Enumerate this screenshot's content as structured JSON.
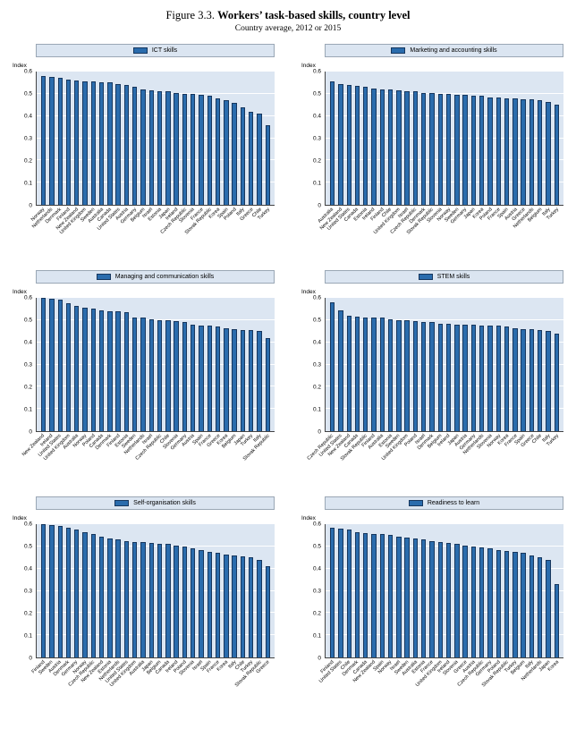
{
  "figure": {
    "label": "Figure 3.3.",
    "title": "Workers’ task-based skills, country level",
    "subtitle": "Country average, 2012 or 2015"
  },
  "labels": {
    "index": "Index"
  },
  "colors": {
    "bar_fill": "#2a6cad",
    "bar_border": "#17375e",
    "plot_background": "#dce6f2",
    "gridline": "#ffffff"
  },
  "chart_data": [
    {
      "type": "bar",
      "title": "ICT skills",
      "ylabel": "Index",
      "xlabel": "",
      "ylim": [
        0,
        0.6
      ],
      "ytick_step": 0.1,
      "grid": true,
      "legend_position": "top",
      "categories": [
        "Norway",
        "Netherlands",
        "Denmark",
        "Finland",
        "New Zealand",
        "United Kingdom",
        "Sweden",
        "Australia",
        "Canada",
        "United States",
        "Austria",
        "Germany",
        "Belgium",
        "Israel",
        "Estonia",
        "Japan",
        "Ireland",
        "Czech Republic",
        "Slovenia",
        "France",
        "Slovak Republic",
        "Korea",
        "Spain",
        "Poland",
        "Italy",
        "Greece",
        "Chile",
        "Turkey"
      ],
      "values": [
        0.58,
        0.575,
        0.57,
        0.565,
        0.56,
        0.555,
        0.555,
        0.55,
        0.55,
        0.545,
        0.54,
        0.53,
        0.52,
        0.515,
        0.51,
        0.51,
        0.505,
        0.5,
        0.5,
        0.495,
        0.49,
        0.48,
        0.47,
        0.46,
        0.44,
        0.42,
        0.41,
        0.36
      ]
    },
    {
      "type": "bar",
      "title": "Marketing and accounting skills",
      "ylabel": "Index",
      "xlabel": "",
      "ylim": [
        0,
        0.6
      ],
      "ytick_step": 0.1,
      "grid": true,
      "legend_position": "top",
      "categories": [
        "Australia",
        "New Zealand",
        "United States",
        "Canada",
        "Estonia",
        "Ireland",
        "Finland",
        "Chile",
        "United Kingdom",
        "Israel",
        "Czech Republic",
        "Denmark",
        "Slovak Republic",
        "Slovenia",
        "Norway",
        "Sweden",
        "Germany",
        "Japan",
        "Korea",
        "Poland",
        "France",
        "Spain",
        "Austria",
        "Greece",
        "Netherlands",
        "Belgium",
        "Italy",
        "Turkey"
      ],
      "values": [
        0.555,
        0.545,
        0.54,
        0.535,
        0.53,
        0.525,
        0.52,
        0.52,
        0.515,
        0.51,
        0.51,
        0.505,
        0.505,
        0.5,
        0.5,
        0.495,
        0.495,
        0.49,
        0.49,
        0.485,
        0.485,
        0.48,
        0.48,
        0.475,
        0.475,
        0.47,
        0.465,
        0.45
      ]
    },
    {
      "type": "bar",
      "title": "Managing and communication skills",
      "ylabel": "Index",
      "xlabel": "",
      "ylim": [
        0,
        0.6
      ],
      "ytick_step": 0.1,
      "grid": true,
      "legend_position": "top",
      "categories": [
        "New Zealand",
        "Ireland",
        "United States",
        "United Kingdom",
        "Australia",
        "Norway",
        "Poland",
        "Canada",
        "Denmark",
        "Finland",
        "Estonia",
        "Sweden",
        "Netherlands",
        "Israel",
        "Czech Republic",
        "Chile",
        "Slovenia",
        "Germany",
        "Austria",
        "Spain",
        "France",
        "Greece",
        "Korea",
        "Belgium",
        "Japan",
        "Turkey",
        "Italy",
        "Slovak Republic"
      ],
      "values": [
        0.6,
        0.595,
        0.59,
        0.575,
        0.565,
        0.555,
        0.55,
        0.545,
        0.54,
        0.54,
        0.535,
        0.51,
        0.51,
        0.505,
        0.5,
        0.5,
        0.495,
        0.49,
        0.48,
        0.475,
        0.475,
        0.47,
        0.465,
        0.46,
        0.455,
        0.455,
        0.45,
        0.42
      ]
    },
    {
      "type": "bar",
      "title": "STEM skills",
      "ylabel": "Index",
      "xlabel": "",
      "ylim": [
        0,
        0.6
      ],
      "ytick_step": 0.1,
      "grid": true,
      "legend_position": "top",
      "categories": [
        "Czech Republic",
        "United States",
        "New Zealand",
        "Canada",
        "Slovak Republic",
        "Finland",
        "Australia",
        "Estonia",
        "Sweden",
        "United Kingdom",
        "Poland",
        "Israel",
        "Denmark",
        "Belgium",
        "Ireland",
        "Japan",
        "Austria",
        "Germany",
        "Netherlands",
        "Slovenia",
        "Norway",
        "Korea",
        "France",
        "Spain",
        "Greece",
        "Chile",
        "Italy",
        "Turkey"
      ],
      "values": [
        0.58,
        0.545,
        0.52,
        0.515,
        0.51,
        0.51,
        0.51,
        0.505,
        0.5,
        0.5,
        0.495,
        0.49,
        0.49,
        0.485,
        0.485,
        0.48,
        0.48,
        0.48,
        0.475,
        0.475,
        0.475,
        0.47,
        0.465,
        0.46,
        0.46,
        0.455,
        0.45,
        0.44
      ]
    },
    {
      "type": "bar",
      "title": "Self-organisation skills",
      "ylabel": "Index",
      "xlabel": "",
      "ylim": [
        0,
        0.6
      ],
      "ytick_step": 0.1,
      "grid": true,
      "legend_position": "top",
      "categories": [
        "Finland",
        "Sweden",
        "Austria",
        "Denmark",
        "Germany",
        "Norway",
        "Czech Republic",
        "New Zealand",
        "Estonia",
        "Netherlands",
        "United States",
        "United Kingdom",
        "Australia",
        "Japan",
        "Belgium",
        "Canada",
        "Ireland",
        "Poland",
        "Slovenia",
        "Israel",
        "Spain",
        "France",
        "Korea",
        "Italy",
        "Chile",
        "Turkey",
        "Slovak Republic",
        "Greece"
      ],
      "values": [
        0.6,
        0.595,
        0.59,
        0.585,
        0.575,
        0.565,
        0.555,
        0.545,
        0.535,
        0.53,
        0.525,
        0.52,
        0.52,
        0.515,
        0.51,
        0.51,
        0.505,
        0.5,
        0.49,
        0.485,
        0.475,
        0.47,
        0.465,
        0.46,
        0.455,
        0.45,
        0.44,
        0.41
      ]
    },
    {
      "type": "bar",
      "title": "Readiness to learn",
      "ylabel": "Index",
      "xlabel": "",
      "ylim": [
        0,
        0.6
      ],
      "ytick_step": 0.1,
      "grid": true,
      "legend_position": "top",
      "categories": [
        "Finland",
        "United States",
        "Chile",
        "Denmark",
        "Canada",
        "New Zealand",
        "Spain",
        "Norway",
        "Israel",
        "Sweden",
        "Australia",
        "Estonia",
        "France",
        "United Kingdom",
        "Ireland",
        "Slovenia",
        "Greece",
        "Austria",
        "Czech Republic",
        "Germany",
        "Poland",
        "Slovak Republic",
        "Turkey",
        "Belgium",
        "Italy",
        "Netherlands",
        "Japan",
        "Korea"
      ],
      "values": [
        0.585,
        0.58,
        0.575,
        0.565,
        0.56,
        0.555,
        0.555,
        0.55,
        0.545,
        0.54,
        0.535,
        0.53,
        0.525,
        0.52,
        0.515,
        0.51,
        0.505,
        0.5,
        0.495,
        0.49,
        0.485,
        0.48,
        0.475,
        0.47,
        0.46,
        0.45,
        0.44,
        0.33
      ]
    }
  ]
}
